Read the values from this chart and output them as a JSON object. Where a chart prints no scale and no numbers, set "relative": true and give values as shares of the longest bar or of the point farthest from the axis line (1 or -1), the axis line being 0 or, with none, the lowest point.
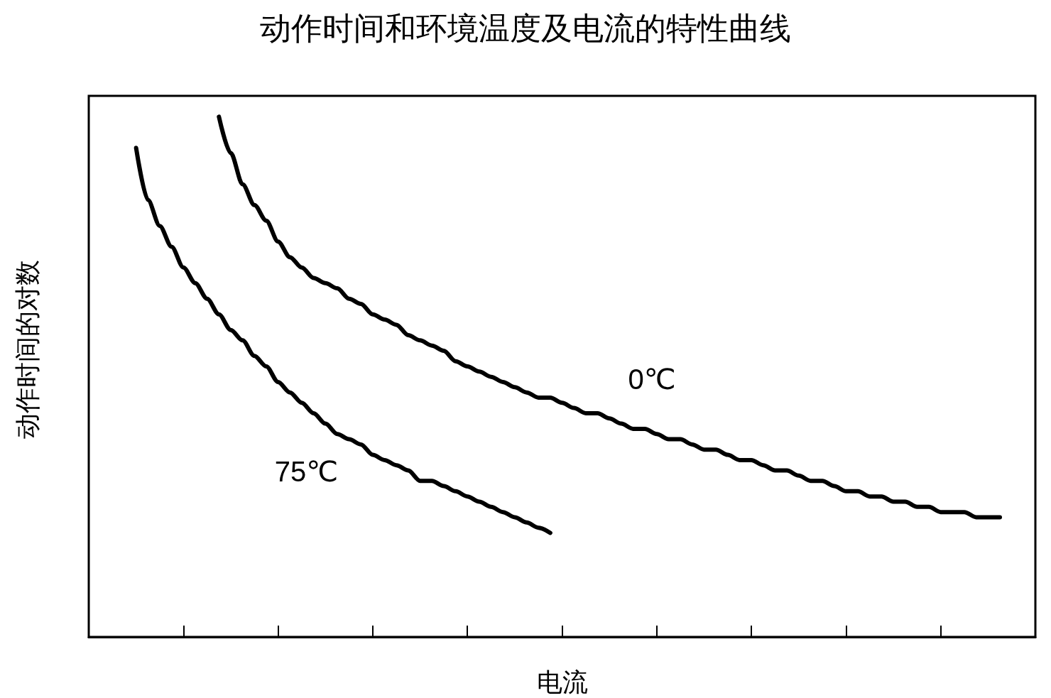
{
  "chart_data": {
    "type": "line",
    "title": "动作时间和环境温度及电流的特性曲线",
    "xlabel": "电流",
    "ylabel": "动作时间的对数",
    "relative": true,
    "legend": false,
    "grid": false,
    "marker": "none",
    "line_style": "solid",
    "categories": [
      null,
      null,
      null,
      null,
      null,
      null,
      null,
      null,
      null,
      null,
      null,
      null,
      null,
      null,
      null,
      null,
      null,
      null,
      null,
      null,
      null,
      null,
      null,
      null,
      null,
      null,
      null,
      null,
      null,
      null,
      null,
      null,
      null,
      null,
      null,
      null,
      null,
      null,
      null,
      null,
      null,
      null,
      null,
      null,
      null,
      null,
      null,
      null,
      null,
      null,
      null,
      null,
      null,
      null,
      null,
      null,
      null,
      null,
      null,
      null,
      null,
      null,
      null,
      null,
      null,
      null,
      null,
      null,
      null,
      null,
      null,
      null,
      null,
      null,
      null,
      null,
      null,
      null,
      null,
      null,
      null
    ],
    "series": [
      {
        "name": "75℃",
        "color": "#000000",
        "values": [
          null,
          null,
          null,
          null,
          0.94,
          0.84,
          0.79,
          0.75,
          0.71,
          0.68,
          0.65,
          0.62,
          0.59,
          0.57,
          0.54,
          0.52,
          0.49,
          0.47,
          0.45,
          0.43,
          0.41,
          0.39,
          0.38,
          0.37,
          0.35,
          0.34,
          0.33,
          0.32,
          0.3,
          0.3,
          0.29,
          0.28,
          0.27,
          0.26,
          0.25,
          0.24,
          0.23,
          0.22,
          0.21,
          0.2,
          null,
          null,
          null,
          null,
          null,
          null,
          null,
          null,
          null,
          null,
          null,
          null,
          null,
          null,
          null,
          null,
          null,
          null,
          null,
          null,
          null,
          null,
          null,
          null,
          null,
          null,
          null,
          null,
          null,
          null,
          null,
          null,
          null,
          null,
          null,
          null,
          null,
          null,
          null,
          null,
          null
        ]
      },
      {
        "name": "0℃",
        "color": "#000000",
        "values": [
          null,
          null,
          null,
          null,
          null,
          null,
          null,
          null,
          null,
          null,
          null,
          1.0,
          0.93,
          0.87,
          0.83,
          0.8,
          0.76,
          0.73,
          0.71,
          0.69,
          0.68,
          0.67,
          0.65,
          0.64,
          0.62,
          0.61,
          0.6,
          0.58,
          0.57,
          0.56,
          0.55,
          0.53,
          0.52,
          0.51,
          0.5,
          0.49,
          0.48,
          0.47,
          0.46,
          0.46,
          0.45,
          0.44,
          0.43,
          0.43,
          0.42,
          0.41,
          0.4,
          0.4,
          0.39,
          0.38,
          0.38,
          0.37,
          0.36,
          0.36,
          0.35,
          0.34,
          0.34,
          0.33,
          0.32,
          0.32,
          0.31,
          0.3,
          0.3,
          0.29,
          0.28,
          0.28,
          0.27,
          0.27,
          0.26,
          0.26,
          0.25,
          0.25,
          0.24,
          0.24,
          0.24,
          0.23,
          0.23,
          0.23,
          null,
          null,
          null
        ]
      }
    ]
  }
}
